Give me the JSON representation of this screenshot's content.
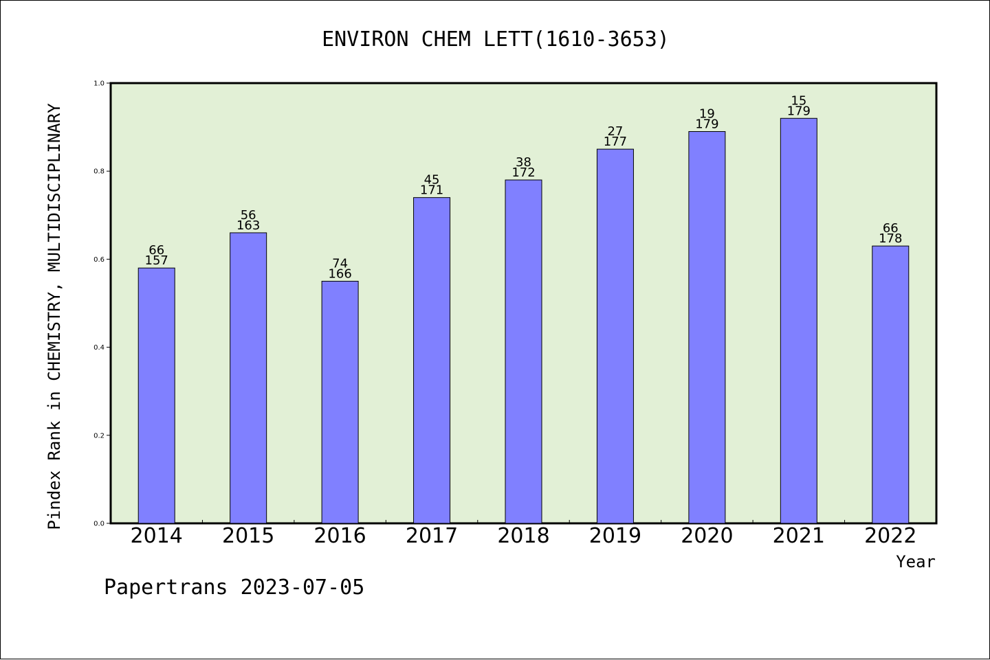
{
  "chart_data": {
    "type": "bar",
    "title": "ENVIRON CHEM LETT(1610-3653)",
    "xlabel": "Year",
    "ylabel": "Pindex Rank in CHEMISTRY, MULTIDISCIPLINARY",
    "categories": [
      "2014",
      "2015",
      "2016",
      "2017",
      "2018",
      "2019",
      "2020",
      "2021",
      "2022"
    ],
    "values": [
      0.58,
      0.66,
      0.55,
      0.74,
      0.78,
      0.85,
      0.89,
      0.92,
      0.63
    ],
    "rank_labels": [
      "66",
      "56",
      "74",
      "45",
      "38",
      "27",
      "19",
      "15",
      "66"
    ],
    "total_labels": [
      "157",
      "163",
      "166",
      "171",
      "172",
      "177",
      "179",
      "179",
      "178"
    ],
    "ylim": [
      0,
      1.0
    ],
    "yticks": [
      "0.0",
      "0.2",
      "0.4",
      "0.6",
      "0.8",
      "1.0"
    ],
    "grid": false,
    "colors": {
      "bar": "#8080ff",
      "plot_background": "#e2f0d6",
      "axis": "#000000"
    }
  },
  "footer": "Papertrans 2023-07-05"
}
